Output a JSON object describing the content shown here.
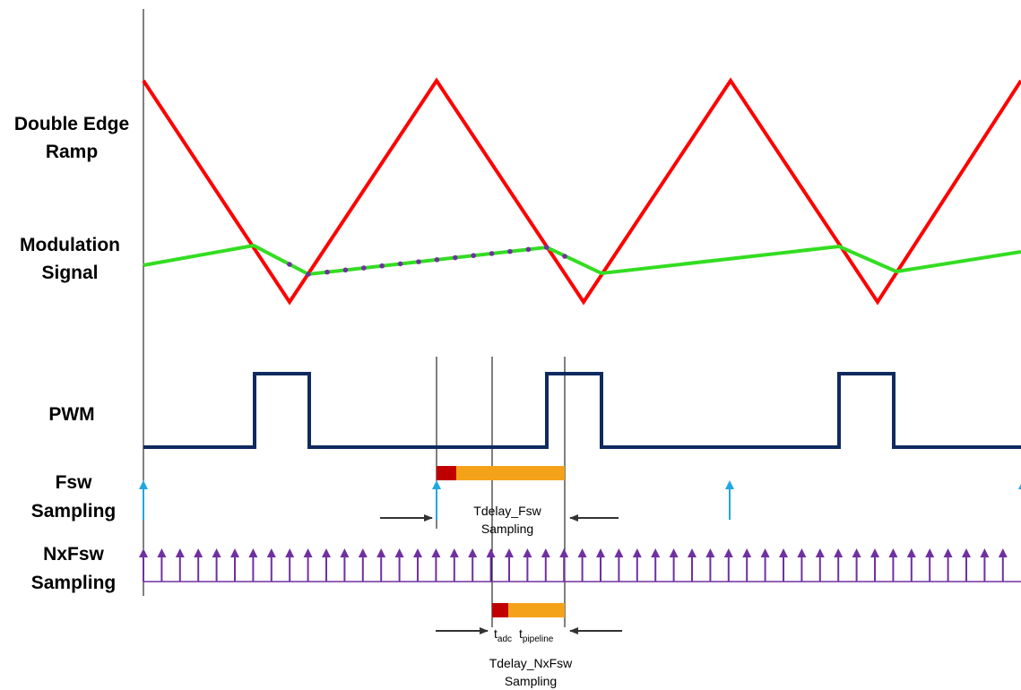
{
  "labels": {
    "ramp_l1": "Double Edge",
    "ramp_l2": "Ramp",
    "mod_l1": "Modulation",
    "mod_l2": "Signal",
    "pwm": "PWM",
    "fsw_l1": "Fsw",
    "fsw_l2": "Sampling",
    "nxfsw_l1": "NxFsw",
    "nxfsw_l2": "Sampling"
  },
  "annotations": {
    "tdelay_fsw_l1": "Tdelay_Fsw",
    "tdelay_fsw_l2": "Sampling",
    "tadc_main": "t",
    "tadc_sub": "adc",
    "tpipeline_main": "t",
    "tpipeline_sub": "pipeline",
    "tdelay_nxfsw_l1": "Tdelay_NxFsw",
    "tdelay_nxfsw_l2": "Sampling"
  },
  "colors": {
    "ramp": "#ff0000",
    "modulation": "#33dd22",
    "modulation_samples": "#7030a0",
    "pwm": "#0f2a5e",
    "fsw_arrow": "#1fa8e0",
    "nxfsw_arrow": "#7030a0",
    "tadc_bar": "#c00000",
    "tpipeline_bar": "#f5a21b",
    "guide_line": "#000000",
    "pointer_arrow": "#333333"
  },
  "waveforms": {
    "fsw_sample_count": 4,
    "nxfsw_sample_count": 49
  }
}
